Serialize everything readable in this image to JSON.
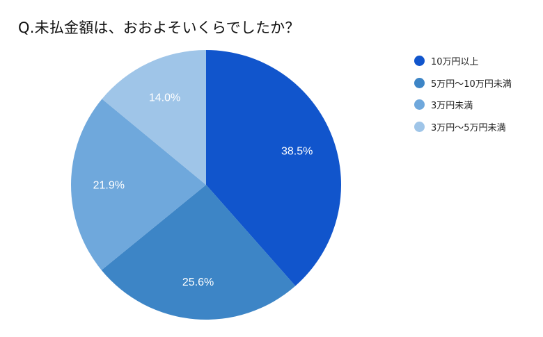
{
  "title": "Q.未払金額は、おおよそいくらでしたか？",
  "chart_data": {
    "type": "pie",
    "title": "Q.未払金額は、おおよそいくらでしたか？",
    "categories": [
      "10万円以上",
      "5万円〜10万円未満",
      "3万円未満",
      "3万円〜5万円未満"
    ],
    "values": [
      38.5,
      25.6,
      21.9,
      14.0
    ],
    "labels": [
      "38.5%",
      "25.6%",
      "21.9%",
      "14.0%"
    ],
    "colors": [
      "#1155cc",
      "#3d85c6",
      "#6fa8dc",
      "#9fc5e8"
    ],
    "start_angle": "12 o'clock, clockwise",
    "legend_position": "right"
  },
  "legend": {
    "items": [
      {
        "label": "10万円以上",
        "color": "#1155cc"
      },
      {
        "label": "5万円〜10万円未満",
        "color": "#3d85c6"
      },
      {
        "label": "3万円未満",
        "color": "#6fa8dc"
      },
      {
        "label": "3万円〜5万円未満",
        "color": "#9fc5e8"
      }
    ]
  }
}
